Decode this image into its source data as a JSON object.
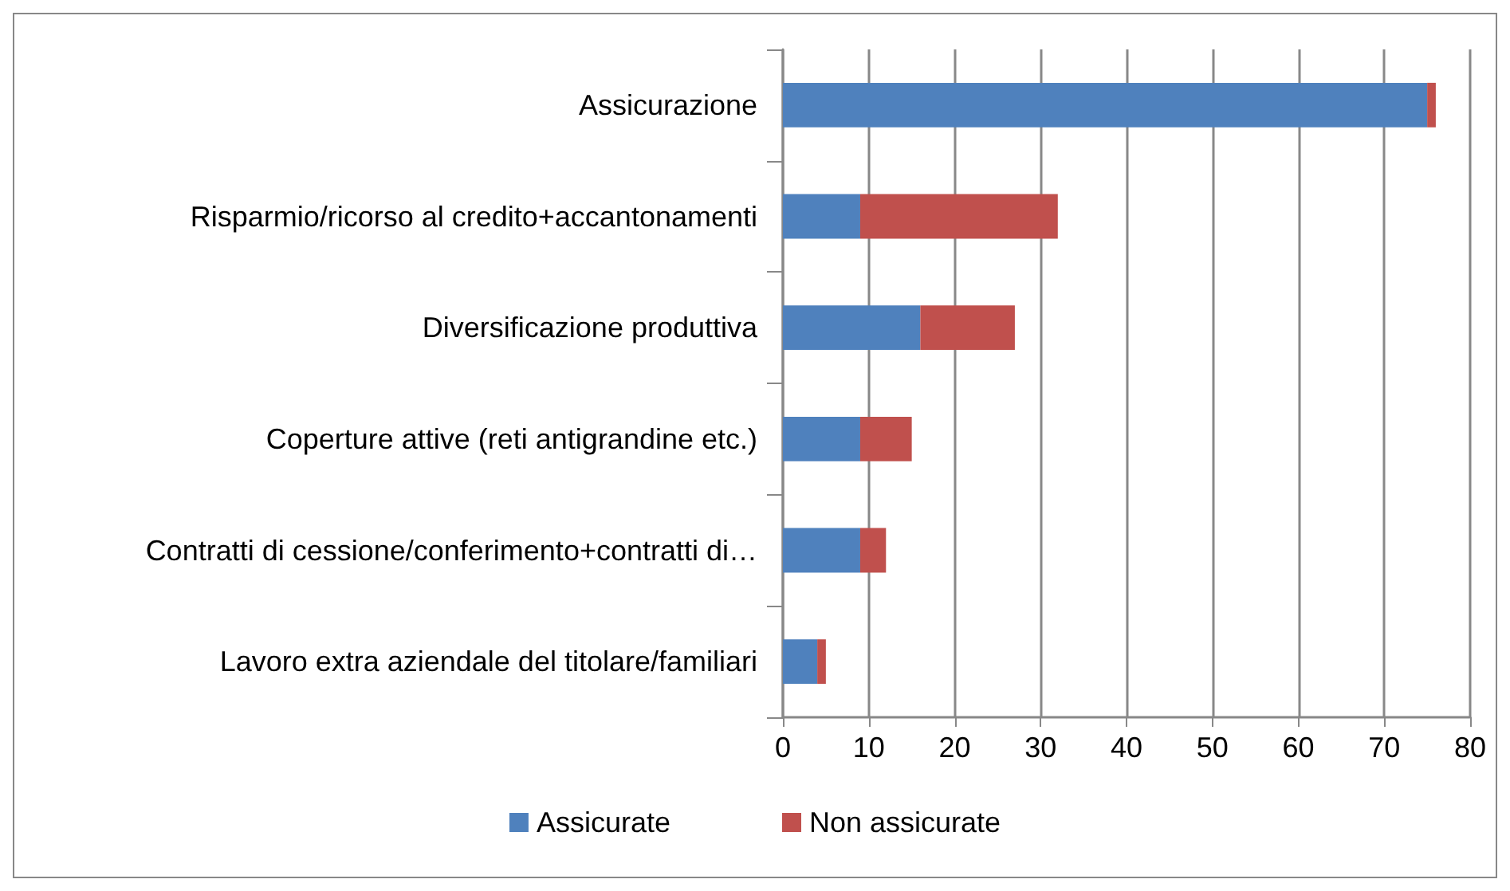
{
  "chart_data": {
    "type": "bar",
    "orientation": "horizontal",
    "stacked": true,
    "categories": [
      "Assicurazione",
      "Risparmio/ricorso al credito+accantonamenti",
      "Diversificazione produttiva",
      "Coperture attive (reti antigrandine etc.)",
      "Contratti di cessione/conferimento+contratti di…",
      "Lavoro extra aziendale del titolare/familiari"
    ],
    "series": [
      {
        "name": "Assicurate",
        "color": "#4f81bd",
        "values": [
          75,
          9,
          16,
          9,
          9,
          4
        ]
      },
      {
        "name": "Non assicurate",
        "color": "#c0504d",
        "values": [
          1,
          23,
          11,
          6,
          3,
          1
        ]
      }
    ],
    "xlim": [
      0,
      80
    ],
    "xticks": [
      0,
      10,
      20,
      30,
      40,
      50,
      60,
      70,
      80
    ],
    "grid": "x",
    "legend": "bottom"
  }
}
